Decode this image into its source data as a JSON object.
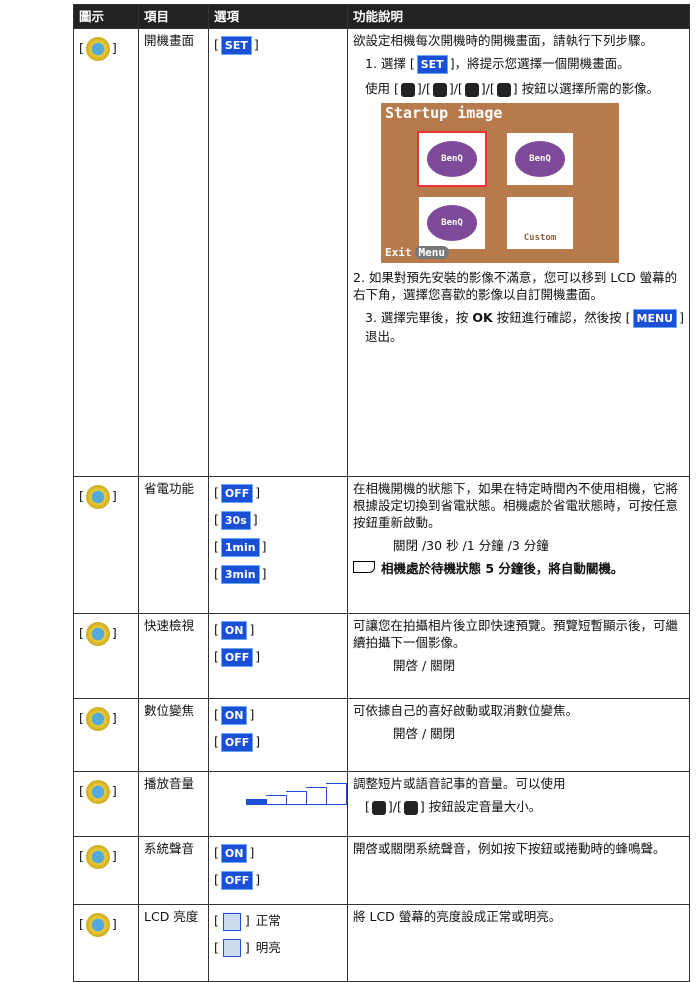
{
  "header": [
    "圖示",
    "項目",
    "選項",
    "功能說明"
  ],
  "bracket": [
    "[",
    "]"
  ],
  "rows": [
    {
      "item": "開機畫面",
      "options": [
        {
          "badge": "SET"
        }
      ],
      "description": [
        {
          "kind": "p",
          "text": "欲設定相機每次開機時的開機畫面，請執行下列步驟。"
        },
        {
          "kind": "seg",
          "parts": [
            "1. 選擇 [",
            {
              "badge": "SET"
            },
            "]，將提示您選擇一個開機畫面。"
          ]
        },
        {
          "kind": "seg",
          "parts": [
            "使用 [",
            "]/[",
            "]/[",
            "]/[",
            "] 按鈕以選擇所需的影像。"
          ]
        },
        {
          "kind": "screen",
          "title": "Startup image",
          "logos": [
            "BenQ",
            "BenQ",
            "BenQ"
          ],
          "custom": "Custom",
          "exit": "Exit",
          "menu": "Menu"
        },
        {
          "kind": "p",
          "text": "2. 如果對預先安裝的影像不滿意，您可以移到 LCD 螢幕的右下角，選擇您喜歡的影像以自訂開機畫面。"
        },
        {
          "kind": "seg",
          "parts": [
            "3. 選擇完畢後，按 ",
            {
              "bold": "OK"
            },
            " 按鈕進行確認，然後按 [",
            {
              "badge": "MENU"
            },
            "] 退出。"
          ]
        }
      ]
    },
    {
      "item": "省電功能",
      "options": [
        {
          "badge": "OFF"
        },
        {
          "badge": "30s"
        },
        {
          "badge": "1min"
        },
        {
          "badge": "3min"
        }
      ],
      "description": [
        {
          "kind": "p",
          "text": "在相機開機的狀態下，如果在特定時間內不使用相機，它將根據設定切換到省電狀態。相機處於省電狀態時，可按任意按鈕重新啟動。"
        },
        {
          "kind": "li",
          "text": "關閉 /30 秒 /1 分鐘 /3 分鐘"
        },
        {
          "kind": "note",
          "text": "相機處於待機狀態 5 分鐘後，將自動關機。"
        }
      ]
    },
    {
      "item": "快速檢視",
      "options": [
        {
          "badge": "ON"
        },
        {
          "badge": "OFF"
        }
      ],
      "description": [
        {
          "kind": "p",
          "text": "可讓您在拍攝相片後立即快速預覽。預覽短暫顯示後，可繼續拍攝下一個影像。"
        },
        {
          "kind": "li",
          "text": "開啓 / 關閉"
        }
      ]
    },
    {
      "item": "數位變焦",
      "options": [
        {
          "badge": "ON"
        },
        {
          "badge": "OFF"
        }
      ],
      "description": [
        {
          "kind": "p",
          "text": "可依據自己的喜好啟動或取消數位變焦。"
        },
        {
          "kind": "li",
          "text": "開啓 / 關閉"
        }
      ]
    },
    {
      "item": "播放音量",
      "options": [],
      "description": [
        {
          "kind": "p",
          "text": "調整短片或語音記事的音量。可以使用"
        },
        {
          "kind": "seg",
          "parts": [
            "[",
            "]/[",
            "] 按鈕設定音量大小。"
          ]
        }
      ]
    },
    {
      "item": "系統聲音",
      "options": [
        {
          "badge": "ON"
        },
        {
          "badge": "OFF"
        }
      ],
      "description": [
        {
          "kind": "p",
          "text": "開啓或關閉系統聲音，例如按下按鈕或捲動時的蜂鳴聲。"
        }
      ]
    },
    {
      "item": "LCD 亮度",
      "options": [
        {
          "label": "正常"
        },
        {
          "label": "明亮"
        }
      ],
      "description": [
        {
          "kind": "p",
          "text": "將 LCD 螢幕的亮度設成正常或明亮。"
        }
      ]
    }
  ]
}
